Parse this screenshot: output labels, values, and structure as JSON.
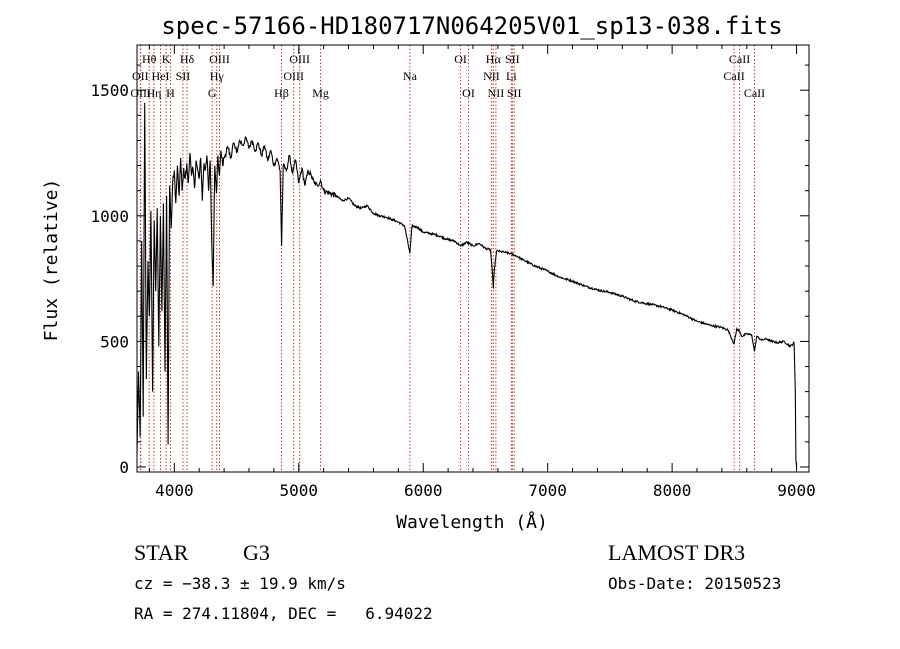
{
  "chart_data": {
    "type": "line",
    "title": "spec-57166-HD180717N064205V01_sp13-038.fits",
    "xlabel": "Wavelength (Å)",
    "ylabel": "Flux (relative)",
    "xlim": [
      3700,
      9100
    ],
    "ylim": [
      -20,
      1680
    ],
    "xticks": [
      4000,
      5000,
      6000,
      7000,
      8000,
      9000
    ],
    "yticks": [
      0,
      500,
      1000,
      1500
    ],
    "xtick_labels": [
      "4000",
      "5000",
      "6000",
      "7000",
      "8000",
      "9000"
    ],
    "ytick_labels": [
      "0",
      "500",
      "1000",
      "1500"
    ],
    "series": [
      {
        "name": "spectrum",
        "x": [
          3700,
          3712,
          3725,
          3738,
          3750,
          3762,
          3775,
          3788,
          3800,
          3812,
          3825,
          3838,
          3850,
          3862,
          3875,
          3888,
          3900,
          3912,
          3925,
          3938,
          3950,
          3962,
          3975,
          3988,
          4000,
          4012,
          4025,
          4038,
          4050,
          4062,
          4075,
          4088,
          4100,
          4112,
          4125,
          4138,
          4150,
          4162,
          4175,
          4188,
          4200,
          4212,
          4225,
          4238,
          4250,
          4262,
          4275,
          4288,
          4300,
          4312,
          4325,
          4338,
          4350,
          4362,
          4375,
          4388,
          4400,
          4425,
          4450,
          4475,
          4500,
          4525,
          4550,
          4575,
          4600,
          4625,
          4650,
          4675,
          4700,
          4725,
          4750,
          4775,
          4800,
          4825,
          4850,
          4862,
          4875,
          4900,
          4925,
          4950,
          4975,
          5000,
          5025,
          5050,
          5075,
          5100,
          5125,
          5150,
          5175,
          5200,
          5250,
          5300,
          5350,
          5400,
          5450,
          5500,
          5550,
          5600,
          5650,
          5700,
          5750,
          5800,
          5850,
          5893,
          5910,
          5950,
          6000,
          6050,
          6100,
          6150,
          6200,
          6250,
          6300,
          6350,
          6400,
          6450,
          6500,
          6540,
          6555,
          6563,
          6572,
          6590,
          6650,
          6700,
          6750,
          6800,
          6900,
          7000,
          7100,
          7200,
          7300,
          7400,
          7500,
          7600,
          7700,
          7800,
          7900,
          8000,
          8100,
          8200,
          8300,
          8400,
          8450,
          8498,
          8520,
          8542,
          8560,
          8600,
          8640,
          8662,
          8680,
          8720,
          8760,
          8800,
          8850,
          8900,
          8950,
          8980,
          8990,
          8995,
          9000
        ],
        "y": [
          50,
          380,
          120,
          900,
          200,
          1450,
          350,
          820,
          600,
          1020,
          300,
          980,
          700,
          1030,
          480,
          1000,
          620,
          1050,
          380,
          1080,
          90,
          1120,
          950,
          1140,
          1180,
          1050,
          1200,
          1080,
          1230,
          1100,
          1190,
          1150,
          1210,
          1130,
          1250,
          1160,
          1190,
          1110,
          1220,
          1180,
          1150,
          1230,
          1060,
          1210,
          1180,
          1240,
          1100,
          1220,
          900,
          720,
          1200,
          1090,
          1240,
          1160,
          1260,
          1200,
          1230,
          1270,
          1230,
          1290,
          1250,
          1300,
          1280,
          1310,
          1270,
          1300,
          1260,
          1290,
          1240,
          1280,
          1220,
          1260,
          1200,
          1230,
          1180,
          880,
          1200,
          1180,
          1240,
          1170,
          1220,
          1130,
          1190,
          1120,
          1180,
          1160,
          1130,
          1120,
          1140,
          1100,
          1090,
          1080,
          1060,
          1070,
          1040,
          1030,
          1040,
          1010,
          1000,
          995,
          985,
          975,
          960,
          850,
          960,
          955,
          935,
          930,
          925,
          915,
          905,
          900,
          880,
          895,
          880,
          890,
          870,
          865,
          780,
          710,
          790,
          860,
          855,
          850,
          840,
          825,
          800,
          780,
          755,
          740,
          720,
          705,
          695,
          680,
          660,
          650,
          640,
          625,
          605,
          580,
          565,
          555,
          545,
          490,
          550,
          540,
          520,
          530,
          525,
          460,
          520,
          505,
          510,
          500,
          495,
          500,
          480,
          495,
          300,
          30,
          0
        ]
      }
    ],
    "line_labels": [
      {
        "name": "Hθ",
        "x": 3798,
        "row": 1
      },
      {
        "name": "OII",
        "x": 3727,
        "row": 2
      },
      {
        "name": "OIII",
        "x": 3730,
        "row": 3
      },
      {
        "name": "K",
        "x": 3934,
        "row": 1
      },
      {
        "name": "HeI",
        "x": 3889,
        "row": 2
      },
      {
        "name": "Hη",
        "x": 3836,
        "row": 3
      },
      {
        "name": "Hδ",
        "x": 4102,
        "row": 1
      },
      {
        "name": "SII",
        "x": 4069,
        "row": 2
      },
      {
        "name": "H",
        "x": 3969,
        "row": 3
      },
      {
        "name": "OIII",
        "x": 4363,
        "row": 1
      },
      {
        "name": "Hγ",
        "x": 4341,
        "row": 2
      },
      {
        "name": "G",
        "x": 4304,
        "row": 3
      },
      {
        "name": "OIII",
        "x": 5007,
        "row": 1
      },
      {
        "name": "OIII",
        "x": 4959,
        "row": 2
      },
      {
        "name": "Hβ",
        "x": 4861,
        "row": 3
      },
      {
        "name": "Mg",
        "x": 5175,
        "row": 3
      },
      {
        "name": "Na",
        "x": 5893,
        "row": 2
      },
      {
        "name": "OI",
        "x": 6300,
        "row": 1
      },
      {
        "name": "OI",
        "x": 6364,
        "row": 3
      },
      {
        "name": "Hα",
        "x": 6563,
        "row": 1
      },
      {
        "name": "SII",
        "x": 6716,
        "row": 1
      },
      {
        "name": "NII",
        "x": 6548,
        "row": 2
      },
      {
        "name": "Li",
        "x": 6708,
        "row": 2
      },
      {
        "name": "NII",
        "x": 6584,
        "row": 3
      },
      {
        "name": "SII",
        "x": 6731,
        "row": 3
      },
      {
        "name": "CaII",
        "x": 8542,
        "row": 1
      },
      {
        "name": "CaII",
        "x": 8498,
        "row": 2
      },
      {
        "name": "CaII",
        "x": 8662,
        "row": 3
      }
    ],
    "line_marker_x": [
      3727,
      3730,
      3798,
      3836,
      3889,
      3934,
      3969,
      4069,
      4102,
      4304,
      4341,
      4363,
      4861,
      4959,
      5007,
      5175,
      5893,
      6300,
      6364,
      6548,
      6563,
      6584,
      6708,
      6716,
      6731,
      8498,
      8542,
      8662
    ],
    "colors": {
      "spectrum": "#000000",
      "line_markers": "#c0392b",
      "axes": "#000000"
    }
  },
  "info": {
    "object_class": "STAR",
    "subclass": "G3",
    "survey": "LAMOST DR3",
    "cz": "cz = −38.3 ± 19.9 km/s",
    "obs_date": "Obs-Date: 20150523",
    "coords": "RA = 274.11804, DEC =   6.94022"
  }
}
